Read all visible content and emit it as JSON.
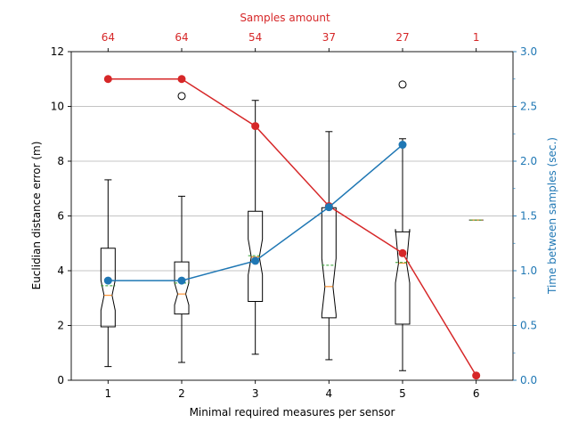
{
  "chart_data": {
    "type": "box",
    "xlabel": "Minimal required measures per sensor",
    "ylabel_left": "Euclidian distance error (m)",
    "ylabel_right": "Time between samples (sec.)",
    "top_axis_label": "Samples amount",
    "categories": [
      1,
      2,
      3,
      4,
      5,
      6
    ],
    "top_tick_labels": [
      "64",
      "64",
      "54",
      "37",
      "27",
      "1"
    ],
    "ylim_left": [
      0,
      12
    ],
    "yticks_left": [
      0,
      2,
      4,
      6,
      8,
      10,
      12
    ],
    "ylim_right": [
      0.0,
      3.0
    ],
    "yticks_right": [
      "0.0",
      "0.5",
      "1.0",
      "1.5",
      "2.0",
      "2.5",
      "3.0"
    ],
    "grid": true,
    "colors": {
      "samples": "#d62728",
      "time": "#1f77b4",
      "box": "#000000",
      "median": "#ff7f0e",
      "mean": "#2ca02c"
    },
    "boxes": [
      {
        "x": 1,
        "whislo": 0.5,
        "q1": 1.95,
        "med": 3.1,
        "q3": 4.82,
        "whishi": 7.32,
        "mean": 3.45,
        "notch_lo": 2.55,
        "notch_hi": 3.65,
        "fliers": []
      },
      {
        "x": 2,
        "whislo": 0.65,
        "q1": 2.42,
        "med": 3.15,
        "q3": 4.32,
        "whishi": 6.72,
        "mean": 3.55,
        "notch_lo": 2.75,
        "notch_hi": 3.55,
        "fliers": [
          10.38
        ]
      },
      {
        "x": 3,
        "whislo": 0.95,
        "q1": 2.88,
        "med": 4.5,
        "q3": 6.17,
        "whishi": 10.22,
        "mean": 4.55,
        "notch_lo": 3.85,
        "notch_hi": 5.15,
        "fliers": []
      },
      {
        "x": 4,
        "whislo": 0.75,
        "q1": 2.28,
        "med": 3.42,
        "q3": 6.3,
        "whishi": 9.08,
        "mean": 4.2,
        "notch_lo": 2.4,
        "notch_hi": 4.45,
        "fliers": []
      },
      {
        "x": 5,
        "whislo": 0.35,
        "q1": 2.05,
        "med": 4.28,
        "q3": 5.42,
        "whishi": 8.82,
        "mean": 4.3,
        "notch_lo": 3.55,
        "notch_hi": 5.52,
        "fliers": [
          10.8
        ]
      },
      {
        "x": 6,
        "whislo": 5.85,
        "q1": 5.85,
        "med": 5.85,
        "q3": 5.85,
        "whishi": 5.85,
        "mean": 5.85,
        "notch_lo": 5.85,
        "notch_hi": 5.85,
        "fliers": []
      }
    ],
    "series": [
      {
        "axis": "samples",
        "values": [
          64,
          64,
          54,
          37,
          27,
          1
        ]
      },
      {
        "axis": "right",
        "values": [
          0.91,
          0.91,
          1.09,
          1.58,
          2.15,
          null
        ]
      }
    ]
  }
}
